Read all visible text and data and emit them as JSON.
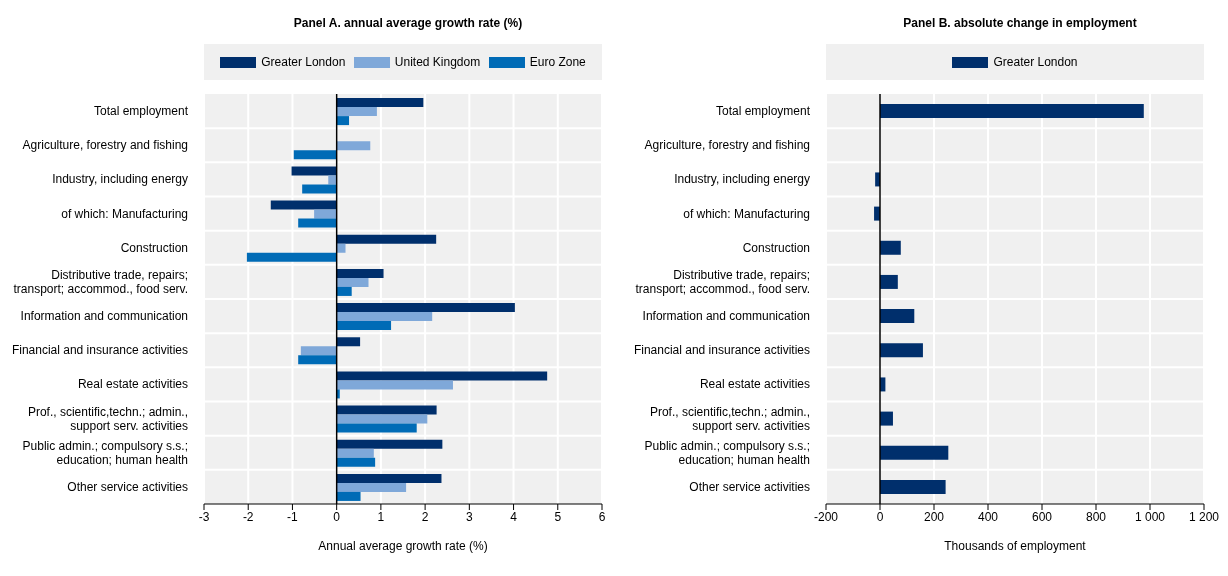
{
  "chart_data": [
    {
      "type": "bar",
      "orientation": "horizontal",
      "title": "Panel A. annual average growth rate (%)",
      "xlabel": "Annual average growth rate (%)",
      "categories": [
        "Total employment",
        "Agriculture, forestry and fishing",
        "Industry, including energy",
        "of which: Manufacturing",
        "Construction",
        "Distributive trade, repairs; transport; accommod., food serv.",
        "Information and communication",
        "Financial and insurance activities",
        "Real estate activities",
        "Prof., scientific,techn.; admin., support serv. activities",
        "Public admin.; compulsory s.s.; education; human health",
        "Other service activities"
      ],
      "series": [
        {
          "name": "Greater London",
          "color": "#002f6c",
          "values": [
            1.96,
            null,
            -1.02,
            -1.49,
            2.25,
            1.06,
            4.03,
            0.53,
            4.76,
            2.26,
            2.39,
            2.37
          ]
        },
        {
          "name": "United Kingdom",
          "color": "#7fa8d9",
          "values": [
            0.91,
            0.76,
            -0.19,
            -0.51,
            0.2,
            0.72,
            2.16,
            -0.81,
            2.63,
            2.05,
            0.84,
            1.57
          ]
        },
        {
          "name": "Euro Zone",
          "color": "#006bb6",
          "values": [
            0.28,
            -0.97,
            -0.78,
            -0.87,
            -2.03,
            0.34,
            1.23,
            -0.87,
            0.07,
            1.81,
            0.87,
            0.54
          ]
        }
      ],
      "xlim": [
        -3,
        6
      ],
      "xticks": [
        -3,
        -2,
        -1,
        0,
        1,
        2,
        3,
        4,
        5,
        6
      ],
      "grid": true,
      "legend": "top",
      "ref_lines": [
        {
          "axis": "x",
          "value": 0,
          "color": "#000000"
        }
      ]
    },
    {
      "type": "bar",
      "orientation": "horizontal",
      "title": "Panel B. absolute change in employment",
      "xlabel": "Thousands of employment",
      "categories": [
        "Total employment",
        "Agriculture, forestry and fishing",
        "Industry, including energy",
        "of which: Manufacturing",
        "Construction",
        "Distributive trade, repairs; transport; accommod., food serv.",
        "Information and communication",
        "Financial and insurance activities",
        "Real estate activities",
        "Prof., scientific,techn.; admin., support serv. activities",
        "Public admin.; compulsory s.s.; education; human health",
        "Other service activities"
      ],
      "series": [
        {
          "name": "Greater London",
          "color": "#002f6c",
          "values": [
            977,
            null,
            -18,
            -22,
            77,
            66,
            127,
            159,
            20,
            48,
            253,
            243
          ]
        }
      ],
      "xlim": [
        -200,
        1200
      ],
      "xticks": [
        -200,
        0,
        200,
        400,
        600,
        800,
        {
          "value": 1000,
          "label": "1 000"
        },
        {
          "value": 1200,
          "label": "1 200"
        }
      ],
      "grid": true,
      "legend": "top",
      "ref_lines": [
        {
          "axis": "x",
          "value": 0,
          "color": "#000000"
        }
      ]
    }
  ]
}
